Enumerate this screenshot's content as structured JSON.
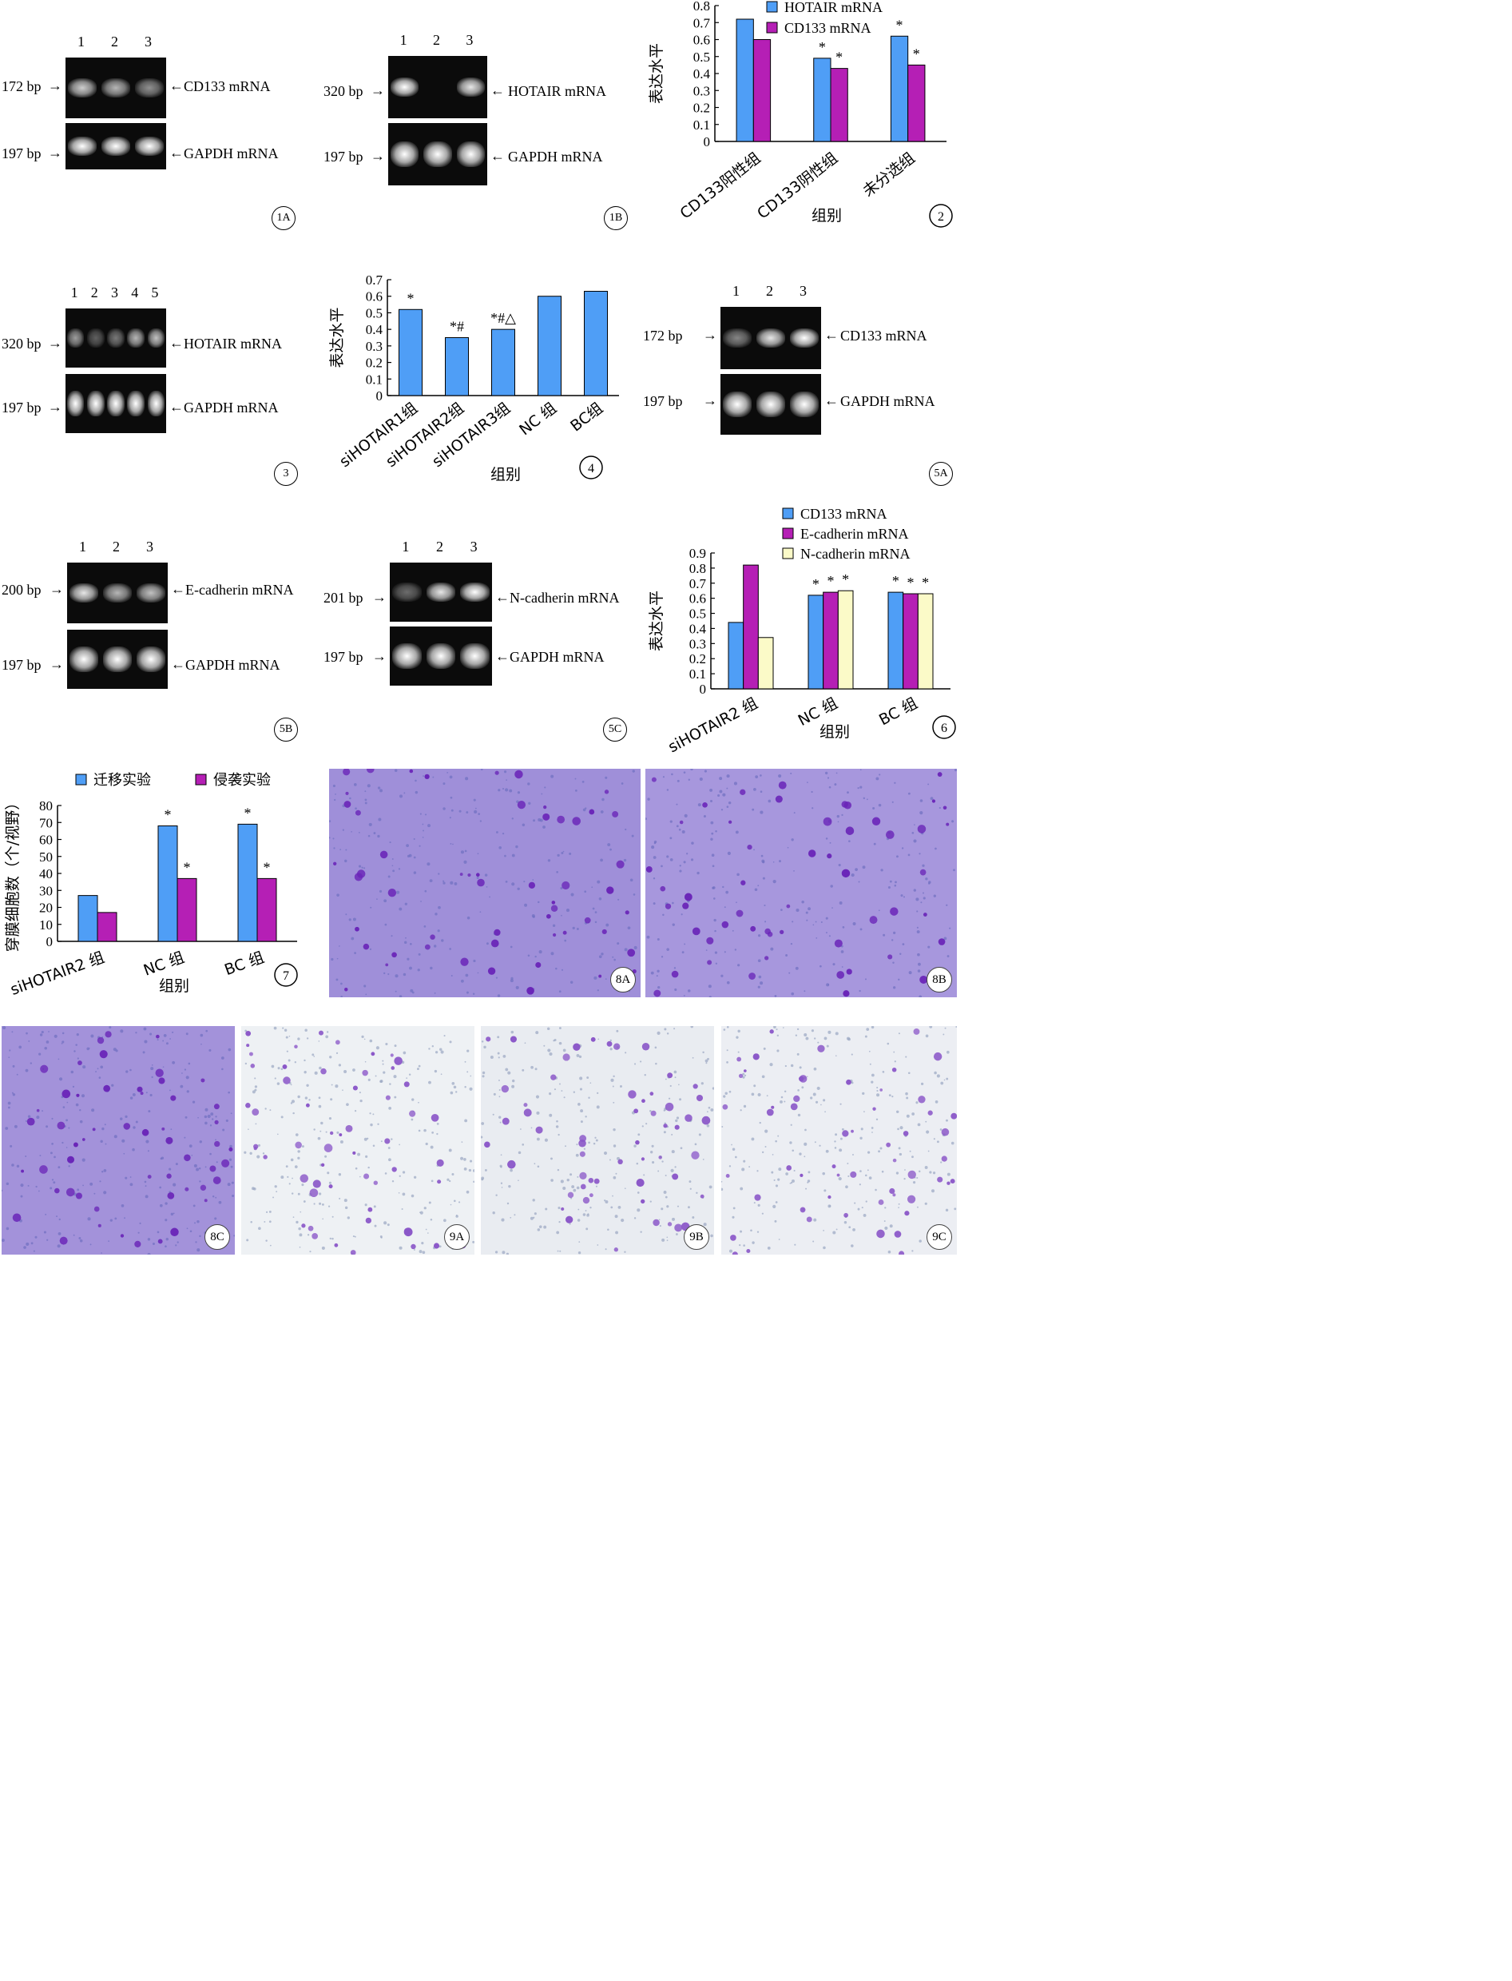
{
  "fig1A": {
    "lanes": [
      "1",
      "2",
      "3"
    ],
    "left": [
      "172 bp",
      "197 bp"
    ],
    "right": [
      "CD133 mRNA",
      "GAPDH mRNA"
    ],
    "id": "1A"
  },
  "fig1B": {
    "lanes": [
      "1",
      "2",
      "3"
    ],
    "left": [
      "320 bp",
      "197 bp"
    ],
    "right": [
      "HOTAIR mRNA",
      "GAPDH mRNA"
    ],
    "id": "1B"
  },
  "fig3": {
    "lanes": [
      "1",
      "2",
      "3",
      "4",
      "5"
    ],
    "left": [
      "320 bp",
      "197 bp"
    ],
    "right": [
      "HOTAIR mRNA",
      "GAPDH mRNA"
    ],
    "id": "3"
  },
  "fig5A": {
    "lanes": [
      "1",
      "2",
      "3"
    ],
    "left": [
      "172 bp",
      "197 bp"
    ],
    "right": [
      "CD133 mRNA",
      "GAPDH mRNA"
    ],
    "id": "5A"
  },
  "fig5B": {
    "lanes": [
      "1",
      "2",
      "3"
    ],
    "left": [
      "200 bp",
      "197 bp"
    ],
    "right": [
      "E-cadherin mRNA",
      "GAPDH mRNA"
    ],
    "id": "5B"
  },
  "fig5C": {
    "lanes": [
      "1",
      "2",
      "3"
    ],
    "left": [
      "201 bp",
      "197 bp"
    ],
    "right": [
      "N-cadherin mRNA",
      "GAPDH mRNA"
    ],
    "id": "5C"
  },
  "micro": [
    {
      "id": "8A",
      "bg": "#9f8fd9"
    },
    {
      "id": "8B",
      "bg": "#a797dd"
    },
    {
      "id": "8C",
      "bg": "#a392da"
    },
    {
      "id": "9A",
      "bg": "#eef1f4"
    },
    {
      "id": "9B",
      "bg": "#e9ecf1"
    },
    {
      "id": "9C",
      "bg": "#eceef3"
    }
  ],
  "chart_data": [
    {
      "id": "2",
      "type": "bar",
      "ylabel": "表达水平",
      "xlabel": "组别",
      "ylim": [
        0,
        0.8
      ],
      "yticks": [
        "0",
        "0.1",
        "0.2",
        "0.3",
        "0.4",
        "0.5",
        "0.6",
        "0.7",
        "0.8"
      ],
      "categories": [
        "CD133阳性组",
        "CD133阴性组",
        "未分选组"
      ],
      "series": [
        {
          "name": "HOTAIR mRNA",
          "color": "#4f9ef6",
          "values": [
            0.72,
            0.49,
            0.62
          ],
          "marks": [
            "",
            "*",
            "*"
          ]
        },
        {
          "name": "CD133 mRNA",
          "color": "#b51fb5",
          "values": [
            0.6,
            0.43,
            0.45
          ],
          "marks": [
            "",
            "*",
            "*"
          ]
        }
      ],
      "legend": "top-right"
    },
    {
      "id": "4",
      "type": "bar",
      "ylabel": "表达水平",
      "xlabel": "组别",
      "ylim": [
        0,
        0.7
      ],
      "yticks": [
        "0",
        "0.1",
        "0.2",
        "0.3",
        "0.4",
        "0.5",
        "0.6",
        "0.7"
      ],
      "categories": [
        "siHOTAIR1组",
        "siHOTAIR2组",
        "siHOTAIR3组",
        "NC 组",
        "BC组"
      ],
      "series": [
        {
          "name": "",
          "color": "#4f9ef6",
          "values": [
            0.52,
            0.35,
            0.4,
            0.6,
            0.63
          ],
          "marks": [
            "*",
            "*#",
            "*#△",
            "",
            ""
          ]
        }
      ]
    },
    {
      "id": "6",
      "type": "bar",
      "ylabel": "表达水平",
      "xlabel": "组别",
      "ylim": [
        0,
        0.9
      ],
      "yticks": [
        "0",
        "0.1",
        "0.2",
        "0.3",
        "0.4",
        "0.5",
        "0.6",
        "0.7",
        "0.8",
        "0.9"
      ],
      "categories": [
        "siHOTAIR2 组",
        "NC 组",
        "BC 组"
      ],
      "series": [
        {
          "name": "CD133 mRNA",
          "color": "#4f9ef6",
          "values": [
            0.44,
            0.62,
            0.64
          ],
          "marks": [
            "",
            "*",
            "*"
          ]
        },
        {
          "name": "E-cadherin mRNA",
          "color": "#b51fb5",
          "values": [
            0.82,
            0.64,
            0.63
          ],
          "marks": [
            "",
            "*",
            "*"
          ]
        },
        {
          "name": "N-cadherin mRNA",
          "color": "#fbfac8",
          "values": [
            0.34,
            0.65,
            0.63
          ],
          "marks": [
            "",
            "*",
            "*"
          ]
        }
      ],
      "legend": "top"
    },
    {
      "id": "7",
      "type": "bar",
      "ylabel": "穿膜细胞数（个/视野）",
      "xlabel": "组别",
      "ylim": [
        0,
        80
      ],
      "yticks": [
        "0",
        "10",
        "20",
        "30",
        "40",
        "50",
        "60",
        "70",
        "80"
      ],
      "categories": [
        "siHOTAIR2 组",
        "NC 组",
        "BC 组"
      ],
      "series": [
        {
          "name": "迁移实验",
          "color": "#4f9ef6",
          "values": [
            27,
            68,
            69
          ],
          "marks": [
            "",
            "*",
            "*"
          ]
        },
        {
          "name": "侵袭实验",
          "color": "#b51fb5",
          "values": [
            17,
            37,
            37
          ],
          "marks": [
            "",
            "*",
            "*"
          ]
        }
      ],
      "legend": "top"
    }
  ]
}
